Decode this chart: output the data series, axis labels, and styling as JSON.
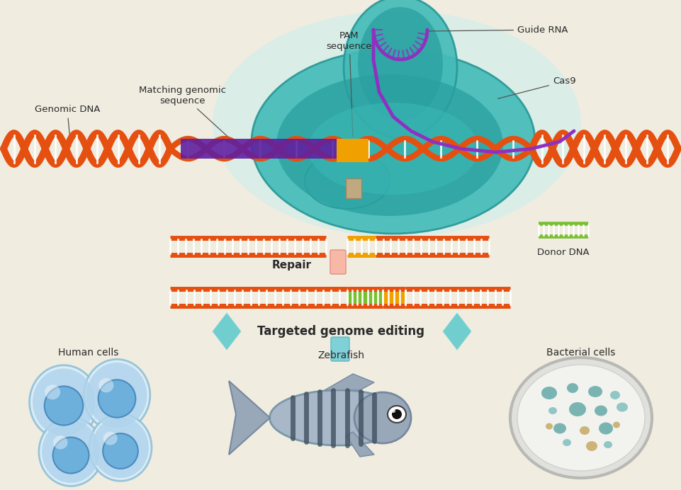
{
  "background_color": "#f0ece0",
  "labels": {
    "genomic_dna": "Genomic DNA",
    "matching_sequence": "Matching genomic\nsequence",
    "pam_sequence": "PAM\nsequence",
    "guide_rna": "Guide RNA",
    "cas9": "Cas9",
    "repair": "Repair",
    "donor_dna": "Donor DNA",
    "targeted_editing": "Targeted genome editing",
    "human_cells": "Human cells",
    "zebrafish": "Zebrafish",
    "bacterial_cells": "Bacterial cells"
  },
  "colors": {
    "dna_red": "#e55010",
    "dna_dark": "#c03a05",
    "cas9_light_teal": "#a8dede",
    "cas9_mid_teal": "#50c0bc",
    "cas9_dark_teal": "#2a9898",
    "cas9_deep": "#1a7878",
    "matching_purple": "#6020a0",
    "pam_yellow": "#f0a000",
    "guide_rna_purple": "#9030c0",
    "repair_pink": "#f8b0a0",
    "donor_green": "#78c030",
    "insert_green": "#78c030",
    "insert_yellow": "#f0a000",
    "human_cell_blue": "#7ab8d8",
    "human_cell_light": "#c8dff0",
    "bacteria_teal": "#50a0a0",
    "bacteria_yellow": "#c0a050",
    "text_dark": "#2a2a2a",
    "arrow_teal": "#60c0c0",
    "background": "#f0ece0",
    "rung_white": "#ffffff"
  }
}
